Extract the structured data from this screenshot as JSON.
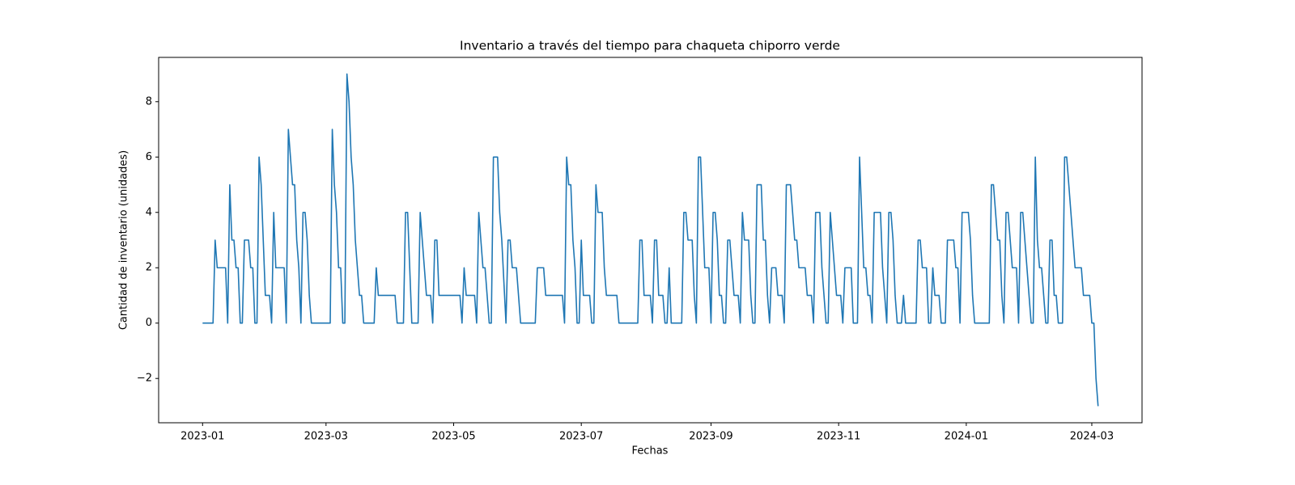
{
  "chart_data": {
    "type": "line",
    "title": "Inventario a través del tiempo para chaqueta chiporro verde",
    "xlabel": "Fechas",
    "ylabel": "Cantidad de inventario (unidades)",
    "color": "#1f77b4",
    "xlim": [
      "2022-12-11",
      "2024-03-25"
    ],
    "xticks": [
      "2023-01",
      "2023-03",
      "2023-05",
      "2023-07",
      "2023-09",
      "2023-11",
      "2024-01",
      "2024-03"
    ],
    "ylim": [
      -3.6,
      9.6
    ],
    "yticks": [
      {
        "value": -2,
        "label": "−2"
      },
      0,
      2,
      4,
      6,
      8
    ],
    "x": [
      "2023-01-01",
      "2023-01-06",
      "2023-01-07",
      "2023-01-08",
      "2023-01-12",
      "2023-01-13",
      "2023-01-14",
      "2023-01-15",
      "2023-01-16",
      "2023-01-17",
      "2023-01-18",
      "2023-01-19",
      "2023-01-20",
      "2023-01-21",
      "2023-01-23",
      "2023-01-24",
      "2023-01-25",
      "2023-01-26",
      "2023-01-27",
      "2023-01-28",
      "2023-01-29",
      "2023-01-31",
      "2023-02-02",
      "2023-02-03",
      "2023-02-04",
      "2023-02-05",
      "2023-02-09",
      "2023-02-10",
      "2023-02-11",
      "2023-02-13",
      "2023-02-14",
      "2023-02-15",
      "2023-02-16",
      "2023-02-17",
      "2023-02-18",
      "2023-02-19",
      "2023-02-20",
      "2023-02-21",
      "2023-02-22",
      "2023-03-03",
      "2023-03-04",
      "2023-03-05",
      "2023-03-06",
      "2023-03-07",
      "2023-03-08",
      "2023-03-09",
      "2023-03-10",
      "2023-03-11",
      "2023-03-12",
      "2023-03-13",
      "2023-03-14",
      "2023-03-15",
      "2023-03-17",
      "2023-03-18",
      "2023-03-19",
      "2023-03-24",
      "2023-03-25",
      "2023-03-26",
      "2023-04-03",
      "2023-04-04",
      "2023-04-07",
      "2023-04-08",
      "2023-04-09",
      "2023-04-11",
      "2023-04-14",
      "2023-04-15",
      "2023-04-16",
      "2023-04-18",
      "2023-04-20",
      "2023-04-21",
      "2023-04-22",
      "2023-04-23",
      "2023-04-24",
      "2023-05-04",
      "2023-05-05",
      "2023-05-06",
      "2023-05-07",
      "2023-05-11",
      "2023-05-12",
      "2023-05-13",
      "2023-05-14",
      "2023-05-15",
      "2023-05-16",
      "2023-05-17",
      "2023-05-18",
      "2023-05-19",
      "2023-05-20",
      "2023-05-22",
      "2023-05-23",
      "2023-05-24",
      "2023-05-26",
      "2023-05-27",
      "2023-05-28",
      "2023-05-29",
      "2023-05-31",
      "2023-06-01",
      "2023-06-02",
      "2023-06-09",
      "2023-06-10",
      "2023-06-13",
      "2023-06-14",
      "2023-06-22",
      "2023-06-23",
      "2023-06-24",
      "2023-06-25",
      "2023-06-26",
      "2023-06-27",
      "2023-06-28",
      "2023-06-29",
      "2023-06-30",
      "2023-07-01",
      "2023-07-02",
      "2023-07-05",
      "2023-07-06",
      "2023-07-07",
      "2023-07-08",
      "2023-07-09",
      "2023-07-11",
      "2023-07-12",
      "2023-07-13",
      "2023-07-18",
      "2023-07-19",
      "2023-07-28",
      "2023-07-29",
      "2023-07-30",
      "2023-07-31",
      "2023-08-03",
      "2023-08-04",
      "2023-08-05",
      "2023-08-06",
      "2023-08-07",
      "2023-08-09",
      "2023-08-10",
      "2023-08-11",
      "2023-08-12",
      "2023-08-13",
      "2023-08-18",
      "2023-08-19",
      "2023-08-20",
      "2023-08-21",
      "2023-08-23",
      "2023-08-24",
      "2023-08-25",
      "2023-08-26",
      "2023-08-27",
      "2023-08-28",
      "2023-08-29",
      "2023-08-31",
      "2023-09-01",
      "2023-09-02",
      "2023-09-03",
      "2023-09-04",
      "2023-09-05",
      "2023-09-06",
      "2023-09-07",
      "2023-09-08",
      "2023-09-09",
      "2023-09-10",
      "2023-09-11",
      "2023-09-12",
      "2023-09-14",
      "2023-09-15",
      "2023-09-16",
      "2023-09-17",
      "2023-09-19",
      "2023-09-20",
      "2023-09-21",
      "2023-09-22",
      "2023-09-23",
      "2023-09-25",
      "2023-09-26",
      "2023-09-27",
      "2023-09-28",
      "2023-09-29",
      "2023-09-30",
      "2023-10-02",
      "2023-10-03",
      "2023-10-05",
      "2023-10-06",
      "2023-10-07",
      "2023-10-09",
      "2023-10-11",
      "2023-10-12",
      "2023-10-13",
      "2023-10-16",
      "2023-10-17",
      "2023-10-19",
      "2023-10-20",
      "2023-10-21",
      "2023-10-23",
      "2023-10-24",
      "2023-10-26",
      "2023-10-27",
      "2023-10-28",
      "2023-10-29",
      "2023-10-31",
      "2023-11-02",
      "2023-11-03",
      "2023-11-04",
      "2023-11-07",
      "2023-11-08",
      "2023-11-10",
      "2023-11-11",
      "2023-11-12",
      "2023-11-13",
      "2023-11-14",
      "2023-11-15",
      "2023-11-16",
      "2023-11-17",
      "2023-11-18",
      "2023-11-21",
      "2023-11-22",
      "2023-11-23",
      "2023-11-24",
      "2023-11-25",
      "2023-11-26",
      "2023-11-27",
      "2023-11-28",
      "2023-11-29",
      "2023-12-01",
      "2023-12-02",
      "2023-12-03",
      "2023-12-08",
      "2023-12-09",
      "2023-12-10",
      "2023-12-11",
      "2023-12-13",
      "2023-12-14",
      "2023-12-15",
      "2023-12-16",
      "2023-12-17",
      "2023-12-19",
      "2023-12-20",
      "2023-12-22",
      "2023-12-23",
      "2023-12-26",
      "2023-12-27",
      "2023-12-28",
      "2023-12-29",
      "2023-12-30",
      "2024-01-02",
      "2024-01-03",
      "2024-01-04",
      "2024-01-05",
      "2024-01-12",
      "2024-01-13",
      "2024-01-14",
      "2024-01-16",
      "2024-01-17",
      "2024-01-18",
      "2024-01-19",
      "2024-01-20",
      "2024-01-21",
      "2024-01-23",
      "2024-01-25",
      "2024-01-26",
      "2024-01-27",
      "2024-01-28",
      "2024-01-31",
      "2024-02-01",
      "2024-02-02",
      "2024-02-03",
      "2024-02-04",
      "2024-02-05",
      "2024-02-06",
      "2024-02-08",
      "2024-02-09",
      "2024-02-10",
      "2024-02-11",
      "2024-02-12",
      "2024-02-13",
      "2024-02-14",
      "2024-02-16",
      "2024-02-17",
      "2024-02-18",
      "2024-02-22",
      "2024-02-25",
      "2024-02-26",
      "2024-02-29",
      "2024-03-01",
      "2024-03-02",
      "2024-03-03",
      "2024-03-04"
    ],
    "values": [
      0,
      0,
      3,
      2,
      2,
      0,
      5,
      3,
      3,
      2,
      2,
      0,
      0,
      3,
      3,
      2,
      2,
      0,
      0,
      6,
      5,
      1,
      1,
      0,
      4,
      2,
      2,
      0,
      7,
      5,
      5,
      3,
      2,
      0,
      4,
      4,
      3,
      1,
      0,
      0,
      7,
      5,
      4,
      2,
      2,
      0,
      0,
      9,
      8,
      6,
      5,
      3,
      1,
      1,
      0,
      0,
      2,
      1,
      1,
      0,
      0,
      4,
      4,
      0,
      0,
      4,
      3,
      1,
      1,
      0,
      3,
      3,
      1,
      1,
      0,
      2,
      1,
      1,
      0,
      4,
      3,
      2,
      2,
      1,
      0,
      0,
      6,
      6,
      4,
      3,
      0,
      3,
      3,
      2,
      2,
      1,
      0,
      0,
      2,
      2,
      1,
      1,
      0,
      6,
      5,
      5,
      3,
      2,
      0,
      0,
      3,
      1,
      1,
      0,
      0,
      5,
      4,
      4,
      2,
      1,
      1,
      0,
      0,
      3,
      3,
      1,
      1,
      0,
      3,
      3,
      1,
      1,
      0,
      0,
      2,
      0,
      0,
      4,
      4,
      3,
      3,
      1,
      0,
      6,
      6,
      4,
      2,
      2,
      0,
      4,
      4,
      3,
      1,
      1,
      0,
      0,
      3,
      3,
      2,
      1,
      1,
      0,
      4,
      3,
      3,
      1,
      0,
      0,
      5,
      5,
      3,
      3,
      1,
      0,
      2,
      2,
      1,
      1,
      0,
      5,
      5,
      3,
      3,
      2,
      2,
      1,
      1,
      0,
      4,
      4,
      2,
      0,
      0,
      4,
      3,
      1,
      1,
      0,
      2,
      2,
      0,
      0,
      6,
      4,
      2,
      2,
      1,
      1,
      0,
      4,
      4,
      2,
      1,
      0,
      4,
      4,
      3,
      1,
      0,
      0,
      1,
      0,
      0,
      3,
      3,
      2,
      2,
      0,
      0,
      2,
      1,
      1,
      0,
      0,
      3,
      3,
      2,
      2,
      0,
      4,
      4,
      3,
      1,
      0,
      0,
      5,
      5,
      3,
      3,
      1,
      0,
      4,
      4,
      2,
      2,
      0,
      4,
      4,
      1,
      0,
      0,
      6,
      3,
      2,
      2,
      0,
      0,
      3,
      3,
      1,
      1,
      0,
      0,
      6,
      6,
      2,
      2,
      1,
      1,
      0,
      0,
      -2,
      -3
    ]
  }
}
